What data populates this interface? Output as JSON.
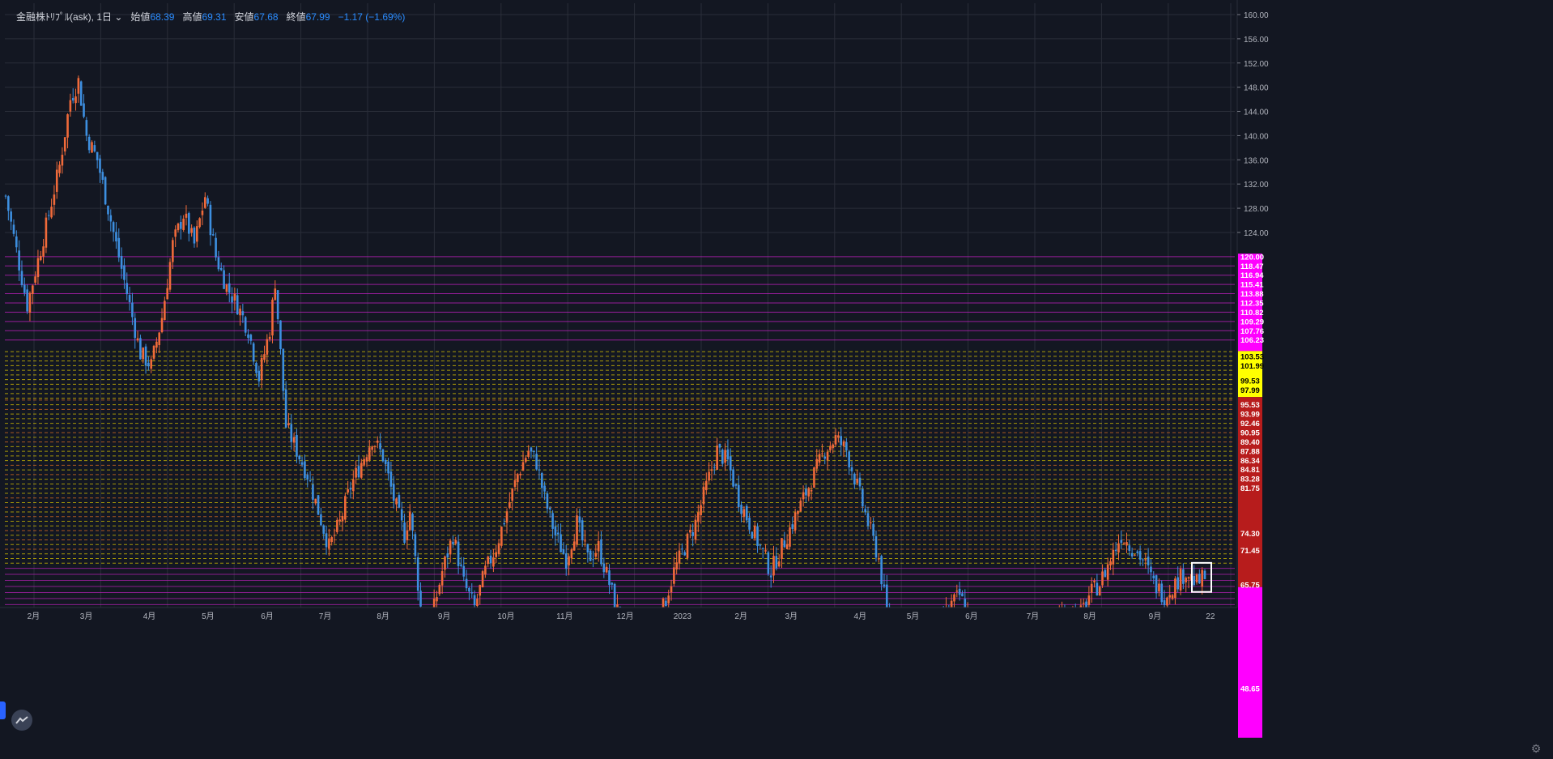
{
  "header": {
    "symbol": "金融株ﾄﾘﾌﾟﾙ(ask), 1日",
    "open_label": "始値",
    "open": "68.39",
    "high_label": "高値",
    "high": "69.31",
    "low_label": "安値",
    "low": "67.68",
    "close_label": "終値",
    "close": "67.99",
    "change": "−1.17 (−1.69%)"
  },
  "colors": {
    "background": "#131722",
    "up": "#f06a3a",
    "down": "#3d8fe0",
    "magenta": "#ff00ff",
    "yellow": "#ffff00",
    "red_label": "#b71c1c",
    "grid": "#2a2e39"
  },
  "icons": {
    "logo": "tradingview-logo-icon",
    "settings": "gear-icon",
    "dropdown": "chevron-down-icon"
  },
  "chart_data": {
    "type": "candlestick",
    "y_range": [
      40,
      162
    ],
    "y_ticks": [
      "160.00",
      "156.00",
      "152.00",
      "148.00",
      "144.00",
      "140.00",
      "136.00",
      "132.00",
      "128.00",
      "124.00"
    ],
    "x_ticks": [
      "2月",
      "3月",
      "4月",
      "5月",
      "6月",
      "7月",
      "8月",
      "9月",
      "10月",
      "11月",
      "12月",
      "2023",
      "2月",
      "3月",
      "4月",
      "5月",
      "6月",
      "7月",
      "8月",
      "9月",
      "22"
    ],
    "grid": true,
    "close_path": [
      [
        0,
        130
      ],
      [
        8,
        112
      ],
      [
        15,
        125
      ],
      [
        20,
        135
      ],
      [
        24,
        146
      ],
      [
        27,
        149
      ],
      [
        30,
        140
      ],
      [
        34,
        136
      ],
      [
        38,
        128
      ],
      [
        42,
        120
      ],
      [
        46,
        112
      ],
      [
        50,
        104
      ],
      [
        54,
        102
      ],
      [
        58,
        110
      ],
      [
        62,
        122
      ],
      [
        66,
        127
      ],
      [
        70,
        122
      ],
      [
        74,
        130
      ],
      [
        78,
        120
      ],
      [
        82,
        115
      ],
      [
        86,
        112
      ],
      [
        90,
        108
      ],
      [
        94,
        100
      ],
      [
        98,
        108
      ],
      [
        100,
        116
      ],
      [
        104,
        92
      ],
      [
        108,
        88
      ],
      [
        112,
        84
      ],
      [
        116,
        78
      ],
      [
        120,
        72
      ],
      [
        124,
        76
      ],
      [
        128,
        82
      ],
      [
        132,
        86
      ],
      [
        136,
        90
      ],
      [
        140,
        87
      ],
      [
        144,
        80
      ],
      [
        148,
        74
      ],
      [
        150,
        78
      ],
      [
        154,
        62
      ],
      [
        158,
        60
      ],
      [
        162,
        68
      ],
      [
        166,
        74
      ],
      [
        170,
        66
      ],
      [
        174,
        62
      ],
      [
        178,
        68
      ],
      [
        182,
        72
      ],
      [
        186,
        78
      ],
      [
        190,
        84
      ],
      [
        194,
        88
      ],
      [
        197,
        86
      ],
      [
        200,
        80
      ],
      [
        204,
        74
      ],
      [
        208,
        70
      ],
      [
        212,
        76
      ],
      [
        216,
        70
      ],
      [
        220,
        72
      ],
      [
        224,
        66
      ],
      [
        228,
        60
      ],
      [
        232,
        54
      ],
      [
        236,
        52
      ],
      [
        240,
        58
      ],
      [
        244,
        62
      ],
      [
        248,
        68
      ],
      [
        252,
        72
      ],
      [
        256,
        76
      ],
      [
        260,
        82
      ],
      [
        264,
        88
      ],
      [
        268,
        86
      ],
      [
        272,
        80
      ],
      [
        276,
        76
      ],
      [
        280,
        72
      ],
      [
        284,
        68
      ],
      [
        288,
        72
      ],
      [
        292,
        76
      ],
      [
        296,
        80
      ],
      [
        300,
        84
      ],
      [
        304,
        88
      ],
      [
        308,
        90
      ],
      [
        312,
        88
      ],
      [
        316,
        82
      ],
      [
        320,
        76
      ],
      [
        324,
        70
      ],
      [
        326,
        64
      ],
      [
        330,
        52
      ],
      [
        334,
        50
      ],
      [
        338,
        54
      ],
      [
        342,
        56
      ],
      [
        346,
        58
      ],
      [
        350,
        62
      ],
      [
        354,
        64
      ],
      [
        358,
        60
      ],
      [
        362,
        56
      ],
      [
        366,
        54
      ],
      [
        370,
        56
      ],
      [
        374,
        58
      ],
      [
        378,
        54
      ],
      [
        382,
        52
      ],
      [
        386,
        58
      ],
      [
        390,
        60
      ],
      [
        394,
        62
      ],
      [
        398,
        60
      ],
      [
        402,
        64
      ],
      [
        406,
        66
      ],
      [
        410,
        70
      ],
      [
        414,
        74
      ],
      [
        418,
        72
      ],
      [
        422,
        70
      ],
      [
        426,
        66
      ],
      [
        430,
        64
      ],
      [
        434,
        66
      ],
      [
        438,
        68
      ],
      [
        442,
        66
      ],
      [
        445,
        67
      ]
    ],
    "axis_labels": [
      {
        "text": "120.00",
        "price": 120.0,
        "c": "m"
      },
      {
        "text": "118.47",
        "price": 118.47,
        "c": "m"
      },
      {
        "text": "116.94",
        "price": 116.94,
        "c": "m"
      },
      {
        "text": "115.41",
        "price": 115.41,
        "c": "m"
      },
      {
        "text": "113.88",
        "price": 113.88,
        "c": "m"
      },
      {
        "text": "112.35",
        "price": 112.35,
        "c": "m"
      },
      {
        "text": "110.82",
        "price": 110.82,
        "c": "m"
      },
      {
        "text": "109.29",
        "price": 109.29,
        "c": "m"
      },
      {
        "text": "107.76",
        "price": 107.76,
        "c": "m"
      },
      {
        "text": "106.23",
        "price": 106.23,
        "c": "m"
      },
      {
        "text": "103.53",
        "price": 103.53,
        "c": "y"
      },
      {
        "text": "101.99",
        "price": 101.99,
        "c": "y"
      },
      {
        "text": "99.53",
        "price": 99.53,
        "c": "y"
      },
      {
        "text": "97.99",
        "price": 97.99,
        "c": "y"
      },
      {
        "text": "95.53",
        "price": 95.53,
        "c": "r"
      },
      {
        "text": "93.99",
        "price": 93.99,
        "c": "r"
      },
      {
        "text": "92.46",
        "price": 92.46,
        "c": "r"
      },
      {
        "text": "90.95",
        "price": 90.95,
        "c": "r"
      },
      {
        "text": "89.40",
        "price": 89.4,
        "c": "r"
      },
      {
        "text": "87.88",
        "price": 87.88,
        "c": "r"
      },
      {
        "text": "86.34",
        "price": 86.34,
        "c": "r"
      },
      {
        "text": "84.81",
        "price": 84.81,
        "c": "r"
      },
      {
        "text": "83.28",
        "price": 83.28,
        "c": "r"
      },
      {
        "text": "81.75",
        "price": 81.75,
        "c": "r"
      },
      {
        "text": "74.30",
        "price": 74.3,
        "c": "r"
      },
      {
        "text": "71.45",
        "price": 71.45,
        "c": "r"
      },
      {
        "text": "65.75",
        "price": 65.75,
        "c": "r"
      },
      {
        "text": "48.65",
        "price": 48.65,
        "c": "m"
      }
    ]
  }
}
